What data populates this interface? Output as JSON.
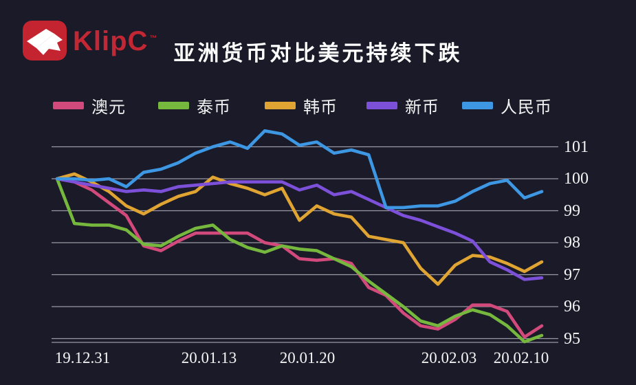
{
  "header": {
    "brand": "KlipC",
    "trademark": "™",
    "title": "亚洲货币对比美元持续下跌"
  },
  "colors": {
    "background": "#1a1a28",
    "logo_red": "#c4242f",
    "brand_text": "#c32733",
    "gridline": "#9a9aa5",
    "axis_text": "#f5f5f5"
  },
  "chart_data": {
    "type": "line",
    "title": "亚洲货币对比美元持续下跌",
    "x_ticks": [
      "19.12.31",
      "20.01.13",
      "20.01.20",
      "20.02.03",
      "20.02.10"
    ],
    "y_ticks": [
      101,
      100,
      99,
      98,
      97,
      96,
      95
    ],
    "ylim": [
      94.6,
      101.7
    ],
    "baseline_value": 100,
    "grid": "horizontal-only",
    "legend_position": "top",
    "axis_side": "right",
    "series": [
      {
        "name": "澳元",
        "color": "#d24a7c",
        "values": [
          100.0,
          99.9,
          99.65,
          99.25,
          98.85,
          97.9,
          97.75,
          98.05,
          98.3,
          98.3,
          98.3,
          98.3,
          98.0,
          97.9,
          97.5,
          97.45,
          97.5,
          97.35,
          96.6,
          96.35,
          95.8,
          95.4,
          95.3,
          95.6,
          96.05,
          96.05,
          95.85,
          95.05,
          95.4
        ]
      },
      {
        "name": "泰币",
        "color": "#76b83e",
        "values": [
          100.0,
          98.6,
          98.55,
          98.55,
          98.4,
          97.95,
          97.9,
          98.2,
          98.45,
          98.55,
          98.1,
          97.85,
          97.7,
          97.9,
          97.8,
          97.75,
          97.5,
          97.25,
          96.8,
          96.4,
          96.0,
          95.55,
          95.4,
          95.7,
          95.9,
          95.75,
          95.4,
          94.9,
          95.1
        ]
      },
      {
        "name": "韩币",
        "color": "#e0a432",
        "values": [
          100.0,
          100.15,
          99.9,
          99.6,
          99.15,
          98.9,
          99.2,
          99.45,
          99.6,
          100.05,
          99.85,
          99.7,
          99.5,
          99.7,
          98.7,
          99.15,
          98.9,
          98.8,
          98.2,
          98.1,
          98.0,
          97.2,
          96.7,
          97.3,
          97.6,
          97.55,
          97.35,
          97.1,
          97.4
        ]
      },
      {
        "name": "新币",
        "color": "#7d50da",
        "values": [
          100.0,
          99.9,
          99.8,
          99.7,
          99.6,
          99.65,
          99.6,
          99.75,
          99.8,
          99.85,
          99.9,
          99.9,
          99.9,
          99.9,
          99.65,
          99.8,
          99.5,
          99.6,
          99.35,
          99.1,
          98.85,
          98.7,
          98.5,
          98.3,
          98.05,
          97.4,
          97.15,
          96.85,
          96.9
        ]
      },
      {
        "name": "人民币",
        "color": "#3d97e3",
        "values": [
          100.0,
          100.0,
          99.95,
          100.0,
          99.75,
          100.2,
          100.3,
          100.5,
          100.8,
          101.0,
          101.15,
          100.95,
          101.5,
          101.4,
          101.05,
          101.15,
          100.8,
          100.9,
          100.75,
          99.1,
          99.1,
          99.15,
          99.15,
          99.3,
          99.6,
          99.85,
          99.95,
          99.4,
          99.6
        ]
      }
    ]
  }
}
